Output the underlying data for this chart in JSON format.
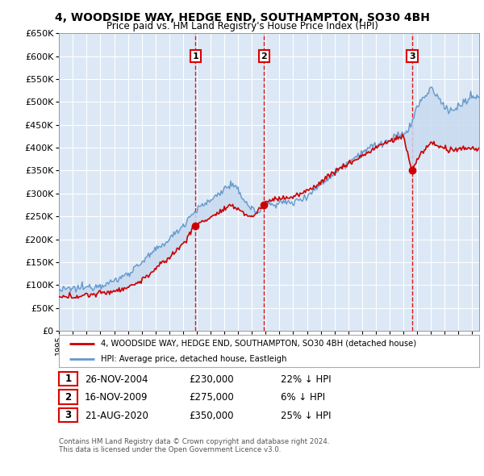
{
  "title1": "4, WOODSIDE WAY, HEDGE END, SOUTHAMPTON, SO30 4BH",
  "title2": "Price paid vs. HM Land Registry's House Price Index (HPI)",
  "plot_bg": "#dce8f5",
  "grid_color": "#ffffff",
  "ylim": [
    0,
    650000
  ],
  "yticks": [
    0,
    50000,
    100000,
    150000,
    200000,
    250000,
    300000,
    350000,
    400000,
    450000,
    500000,
    550000,
    600000,
    650000
  ],
  "transactions": [
    {
      "label": "1",
      "date": "26-NOV-2004",
      "price": 230000,
      "pct": "22%",
      "x": 2004.9
    },
    {
      "label": "2",
      "date": "16-NOV-2009",
      "price": 275000,
      "pct": "6%",
      "x": 2009.88
    },
    {
      "label": "3",
      "date": "21-AUG-2020",
      "price": 350000,
      "pct": "25%",
      "x": 2020.64
    }
  ],
  "legend_label_red": "4, WOODSIDE WAY, HEDGE END, SOUTHAMPTON, SO30 4BH (detached house)",
  "legend_label_blue": "HPI: Average price, detached house, Eastleigh",
  "footer1": "Contains HM Land Registry data © Crown copyright and database right 2024.",
  "footer2": "This data is licensed under the Open Government Licence v3.0.",
  "red_color": "#cc0000",
  "blue_color": "#6699cc",
  "shade_color": "#c8daf0"
}
